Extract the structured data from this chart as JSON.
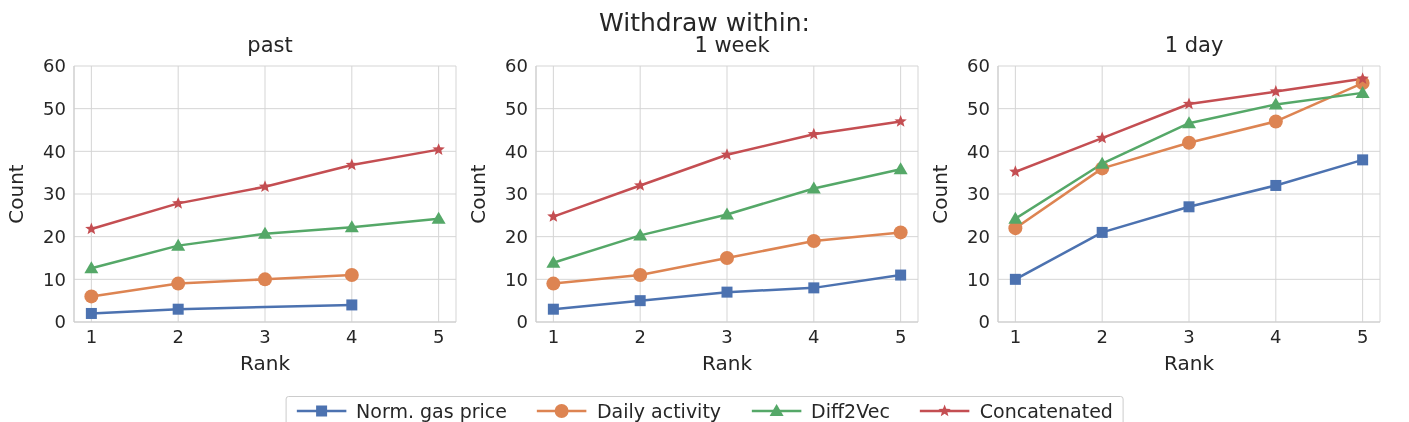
{
  "chart_data": [
    {
      "type": "other",
      "title": "Withdraw within:"
    },
    {
      "type": "line",
      "title": "past",
      "xlabel": "Rank",
      "ylabel": "Count",
      "xlim": [
        0.8,
        5.2
      ],
      "xticks": [
        1,
        2,
        3,
        4,
        5
      ],
      "ylim": [
        0,
        60
      ],
      "yticks": [
        0,
        10,
        20,
        30,
        40,
        50,
        60
      ],
      "grid": true,
      "legend": false,
      "series": [
        {
          "color": "#4c72b0",
          "marker": "square",
          "x": [
            1,
            2,
            4
          ],
          "values": [
            2,
            3,
            4
          ]
        },
        {
          "color": "#dd8452",
          "marker": "circle",
          "x": [
            1,
            2,
            3,
            4
          ],
          "values": [
            6,
            9,
            10,
            11
          ]
        },
        {
          "color": "#55a868",
          "marker": "triangle",
          "x": [
            1,
            2,
            3,
            4,
            5
          ],
          "values": [
            12.6,
            17.9,
            20.7,
            22.2,
            24.2
          ]
        },
        {
          "color": "#c44e52",
          "marker": "star",
          "x": [
            1,
            2,
            3,
            4,
            5
          ],
          "values": [
            21.8,
            27.8,
            31.7,
            36.8,
            40.4
          ]
        }
      ]
    },
    {
      "type": "line",
      "title": "1 week",
      "xlabel": "Rank",
      "ylabel": "Count",
      "xlim": [
        0.8,
        5.2
      ],
      "xticks": [
        1,
        2,
        3,
        4,
        5
      ],
      "ylim": [
        0,
        60
      ],
      "yticks": [
        0,
        10,
        20,
        30,
        40,
        50,
        60
      ],
      "grid": true,
      "legend": "bottom",
      "series": [
        {
          "name": "Norm. gas price",
          "color": "#4c72b0",
          "marker": "square",
          "x": [
            1,
            2,
            3,
            4,
            5
          ],
          "values": [
            3,
            5,
            7,
            8,
            11
          ]
        },
        {
          "name": "Daily activity",
          "color": "#dd8452",
          "marker": "circle",
          "x": [
            1,
            2,
            3,
            4,
            5
          ],
          "values": [
            9,
            11,
            15,
            19,
            21
          ]
        },
        {
          "name": "Diff2Vec",
          "color": "#55a868",
          "marker": "triangle",
          "x": [
            1,
            2,
            3,
            4,
            5
          ],
          "values": [
            13.9,
            20.3,
            25.2,
            31.3,
            35.8
          ]
        },
        {
          "name": "Concatenated",
          "color": "#c44e52",
          "marker": "star",
          "x": [
            1,
            2,
            3,
            4,
            5
          ],
          "values": [
            24.7,
            32,
            39.2,
            44,
            47
          ]
        }
      ]
    },
    {
      "type": "line",
      "title": "1 day",
      "xlabel": "Rank",
      "ylabel": "Count",
      "xlim": [
        0.8,
        5.2
      ],
      "xticks": [
        1,
        2,
        3,
        4,
        5
      ],
      "ylim": [
        0,
        60
      ],
      "yticks": [
        0,
        10,
        20,
        30,
        40,
        50,
        60
      ],
      "grid": true,
      "legend": false,
      "series": [
        {
          "color": "#4c72b0",
          "marker": "square",
          "x": [
            1,
            2,
            3,
            4,
            5
          ],
          "values": [
            10,
            21,
            27,
            32,
            38
          ]
        },
        {
          "color": "#dd8452",
          "marker": "circle",
          "x": [
            1,
            2,
            3,
            4,
            5
          ],
          "values": [
            22,
            36,
            42,
            47,
            56
          ]
        },
        {
          "color": "#55a868",
          "marker": "triangle",
          "x": [
            1,
            2,
            3,
            4,
            5
          ],
          "values": [
            24.2,
            37.1,
            46.6,
            51,
            53.7
          ]
        },
        {
          "color": "#c44e52",
          "marker": "star",
          "x": [
            1,
            2,
            3,
            4,
            5
          ],
          "values": [
            35.2,
            43.1,
            51.1,
            54,
            57
          ]
        }
      ]
    }
  ]
}
